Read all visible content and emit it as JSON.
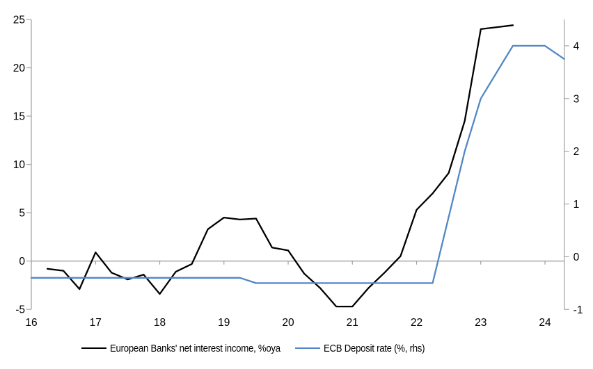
{
  "chart_data": {
    "type": "line",
    "title": "",
    "xlabel": "",
    "ylabel_left": "",
    "ylabel_right": "",
    "grid": "zero-line-only",
    "legend_position": "bottom",
    "x_axis": {
      "tick_labels": [
        "16",
        "17",
        "18",
        "19",
        "20",
        "21",
        "22",
        "23",
        "24"
      ],
      "tick_values": [
        16,
        17,
        18,
        19,
        20,
        21,
        22,
        23,
        24
      ],
      "range": [
        16,
        24.3
      ]
    },
    "left_axis": {
      "tick_values": [
        25,
        20,
        15,
        10,
        5,
        0,
        -5
      ],
      "range": [
        -5,
        25
      ]
    },
    "right_axis": {
      "tick_values": [
        4,
        3,
        2,
        1,
        0,
        -1
      ],
      "range": [
        -1,
        4.5
      ]
    },
    "series": [
      {
        "name": "European Banks' net interest income, %oya",
        "axis": "left",
        "color": "#000000",
        "points": [
          [
            16.25,
            -0.8
          ],
          [
            16.5,
            -1.0
          ],
          [
            16.75,
            -2.9
          ],
          [
            17.0,
            0.9
          ],
          [
            17.25,
            -1.2
          ],
          [
            17.5,
            -1.9
          ],
          [
            17.75,
            -1.4
          ],
          [
            18.0,
            -3.4
          ],
          [
            18.25,
            -1.1
          ],
          [
            18.5,
            -0.3
          ],
          [
            18.75,
            3.3
          ],
          [
            19.0,
            4.5
          ],
          [
            19.25,
            4.3
          ],
          [
            19.5,
            4.4
          ],
          [
            19.75,
            1.4
          ],
          [
            20.0,
            1.1
          ],
          [
            20.25,
            -1.3
          ],
          [
            20.5,
            -2.8
          ],
          [
            20.75,
            -4.7
          ],
          [
            21.0,
            -4.7
          ],
          [
            21.25,
            -2.8
          ],
          [
            21.5,
            -1.2
          ],
          [
            21.75,
            0.5
          ],
          [
            22.0,
            5.3
          ],
          [
            22.25,
            7.0
          ],
          [
            22.5,
            9.1
          ],
          [
            22.75,
            14.5
          ],
          [
            23.0,
            24.0
          ],
          [
            23.25,
            24.2
          ],
          [
            23.5,
            24.4
          ]
        ]
      },
      {
        "name": "ECB Deposit rate (%, rhs)",
        "axis": "right",
        "color": "#5287c5",
        "points": [
          [
            16.0,
            -0.4
          ],
          [
            19.25,
            -0.4
          ],
          [
            19.5,
            -0.5
          ],
          [
            22.25,
            -0.5
          ],
          [
            22.5,
            0.75
          ],
          [
            22.75,
            2.0
          ],
          [
            23.0,
            3.0
          ],
          [
            23.25,
            3.5
          ],
          [
            23.5,
            4.0
          ],
          [
            24.0,
            4.0
          ],
          [
            24.3,
            3.75
          ]
        ]
      }
    ],
    "colors": {
      "axis_line": "#a6a6a6",
      "zero_line": "#a0a0a0",
      "tick_text": "#000000",
      "background": "#ffffff"
    }
  },
  "legend": {
    "items": [
      {
        "label": "European Banks' net interest income, %oya",
        "color": "#000000"
      },
      {
        "label": "ECB Deposit rate (%, rhs)",
        "color": "#5287c5"
      }
    ]
  }
}
